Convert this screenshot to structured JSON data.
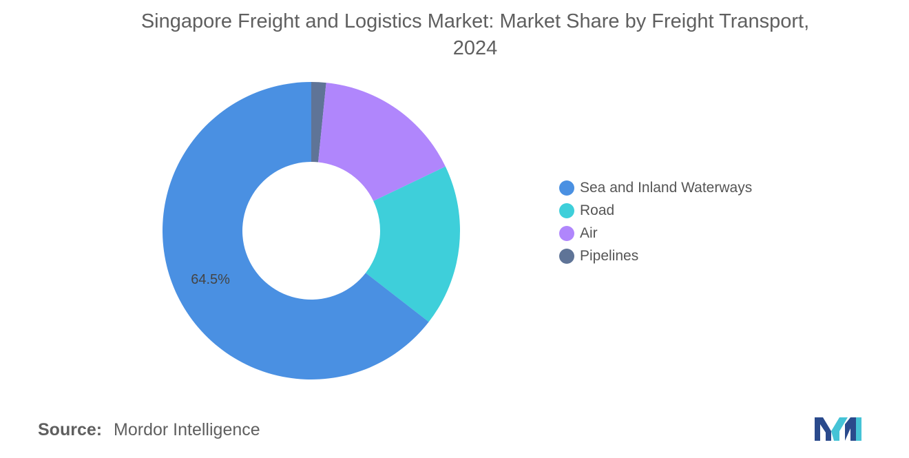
{
  "title_lines": [
    "Singapore Freight and Logistics Market: Market Share by Freight Transport,",
    "2024"
  ],
  "chart_data": {
    "type": "pie",
    "variant": "donut",
    "title": "Singapore Freight and Logistics Market: Market Share by Freight Transport, 2024",
    "slices": [
      {
        "name": "Sea and Inland Waterways",
        "value": 64.5,
        "color": "#4a90e2",
        "label": "64.5%"
      },
      {
        "name": "Road",
        "value": 17.6,
        "color": "#3ecfda",
        "label": ""
      },
      {
        "name": "Air",
        "value": 16.3,
        "color": "#b086fc",
        "label": ""
      },
      {
        "name": "Pipelines",
        "value": 1.6,
        "color": "#5f7497",
        "label": ""
      }
    ],
    "slice_order": "clockwise from top: Pipelines, Air, Road, Sea and Inland Waterways",
    "legend_position": "right"
  },
  "legend": [
    {
      "label": "Sea and Inland Waterways",
      "color": "#4a90e2"
    },
    {
      "label": "Road",
      "color": "#3ecfda"
    },
    {
      "label": "Air",
      "color": "#b086fc"
    },
    {
      "label": "Pipelines",
      "color": "#5f7497"
    }
  ],
  "source": {
    "label": "Source:",
    "value": "Mordor Intelligence"
  },
  "logo": {
    "icon": "mordor-intelligence-logo",
    "colors": [
      "#2a4a8c",
      "#45c3d6"
    ]
  }
}
